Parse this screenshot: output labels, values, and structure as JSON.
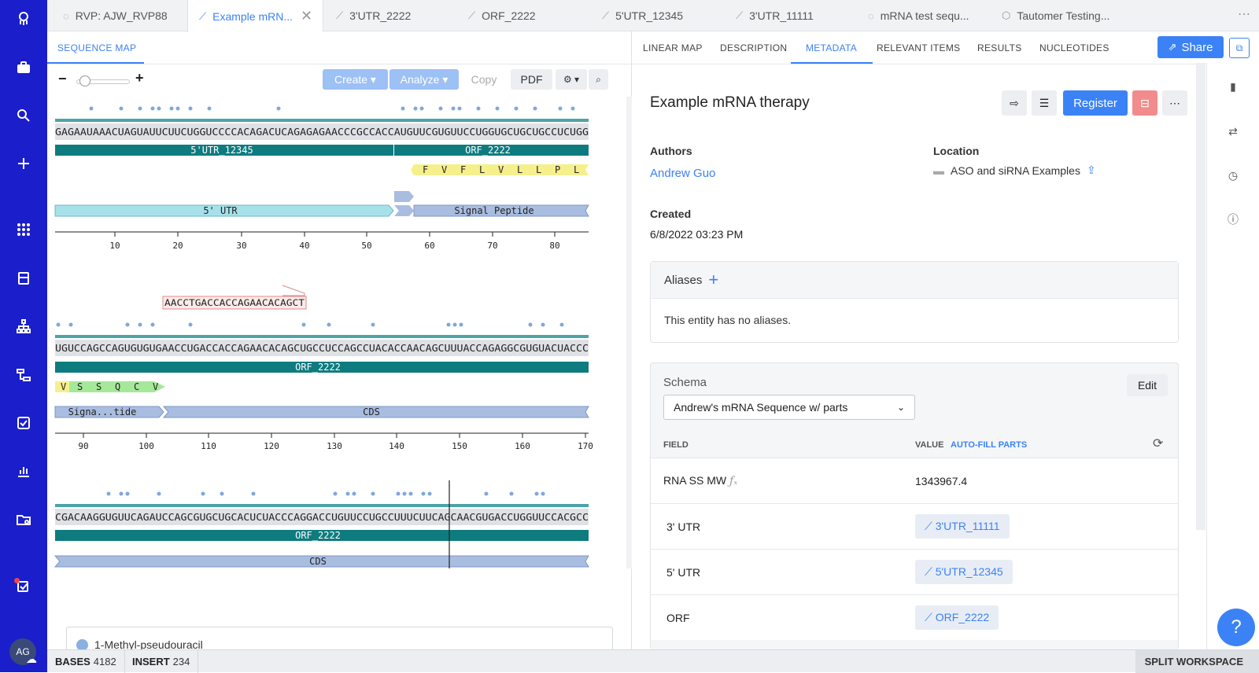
{
  "nav": {
    "icons": [
      "logo-icon",
      "briefcase-icon",
      "search-icon",
      "plus-icon",
      "apps-icon",
      "inventory-icon",
      "hierarchy-icon",
      "workflow-icon",
      "tasks-icon",
      "analytics-icon",
      "folder-settings-icon",
      "notifications-icon"
    ],
    "avatar": "AG",
    "nav_color": "#1a1ecb"
  },
  "tabs": [
    {
      "label": "RVP: AJW_RVP88",
      "icon": "loading-icon"
    },
    {
      "label": "Example mRN...",
      "icon": "dna-icon",
      "active": true
    },
    {
      "label": "3'UTR_2222",
      "icon": "dna-icon"
    },
    {
      "label": "ORF_2222",
      "icon": "dna-icon"
    },
    {
      "label": "5'UTR_12345",
      "icon": "dna-icon"
    },
    {
      "label": "3'UTR_11111",
      "icon": "dna-icon"
    },
    {
      "label": "mRNA test sequ...",
      "icon": "loading-icon"
    },
    {
      "label": "Tautomer Testing...",
      "icon": "hexagon-icon"
    }
  ],
  "left": {
    "header": "SEQUENCE MAP",
    "toolbar": {
      "create": "Create",
      "analyze": "Analyze",
      "copy": "Copy",
      "pdf": "PDF"
    },
    "rows": [
      {
        "seq": "GAGAAUAAACUAGUAUUCUUCUGGUCCCCACAGACUCAGAGAGAACCCGCCACCAUGUUCGUGUUCCUGGUGCUGCUGCCUCUGG",
        "feat1": "5'UTR_12345",
        "feat2": "ORF_2222",
        "aa": [
          "F",
          "V",
          "F",
          "L",
          "V",
          "L",
          "L",
          "P",
          "L"
        ],
        "ann1": "5' UTR",
        "ann2": "Signal Peptide",
        "ticks": [
          "10",
          "20",
          "30",
          "40",
          "50",
          "60",
          "70",
          "80"
        ]
      },
      {
        "primer": "AACCTGACCACCAGAACACAGCT",
        "seq": "UGUCCAGCCAGUGUGUGAACCUGACCACCAGAACACAGCUGCCUCCAGCCUACACCAACAGCUUUACCAGAGGCGUGUACUACCC",
        "feat1": "ORF_2222",
        "aa": [
          "V",
          "S",
          "S",
          "Q",
          "C",
          "V"
        ],
        "ann1": "Signa...tide",
        "ann2": "CDS",
        "ticks": [
          "90",
          "100",
          "110",
          "120",
          "130",
          "140",
          "150",
          "160",
          "170"
        ]
      },
      {
        "seq": "CGACAAGGUGUUCAGAUCCAGCGUGCUGCACUCUACCCAGGACCUGUUCCUGCCUUUCUUCAGCAACGUGACCUGGUUCCACGCC",
        "feat1": "ORF_2222",
        "ann1": "CDS"
      }
    ],
    "legend": "1-Methyl-pseudouracil"
  },
  "status": {
    "bases_label": "BASES",
    "bases": "4182",
    "insert_label": "INSERT",
    "insert": "234",
    "split": "SPLIT WORKSPACE"
  },
  "right": {
    "tabs": [
      "LINEAR MAP",
      "DESCRIPTION",
      "METADATA",
      "RELEVANT ITEMS",
      "RESULTS",
      "NUCLEOTIDES"
    ],
    "share": "Share",
    "title": "Example mRNA therapy",
    "register": "Register",
    "authors_label": "Authors",
    "author": "Andrew Guo",
    "location_label": "Location",
    "location": "ASO and siRNA Examples",
    "created_label": "Created",
    "created": "6/8/2022 03:23 PM",
    "aliases_label": "Aliases",
    "aliases_empty": "This entity has no aliases.",
    "schema_label": "Schema",
    "edit": "Edit",
    "schema_value": "Andrew's mRNA Sequence w/ parts",
    "field_col": "FIELD",
    "value_col": "VALUE",
    "autofill": "AUTO-FILL PARTS",
    "fields": [
      {
        "name": "RNA SS MW",
        "value": "1343967.4",
        "type": "text"
      },
      {
        "name": "3' UTR",
        "value": "3'UTR_11111",
        "type": "chip"
      },
      {
        "name": "5' UTR",
        "value": "5'UTR_12345",
        "type": "chip"
      },
      {
        "name": "ORF",
        "value": "ORF_2222",
        "type": "chip"
      }
    ],
    "help": "?"
  }
}
